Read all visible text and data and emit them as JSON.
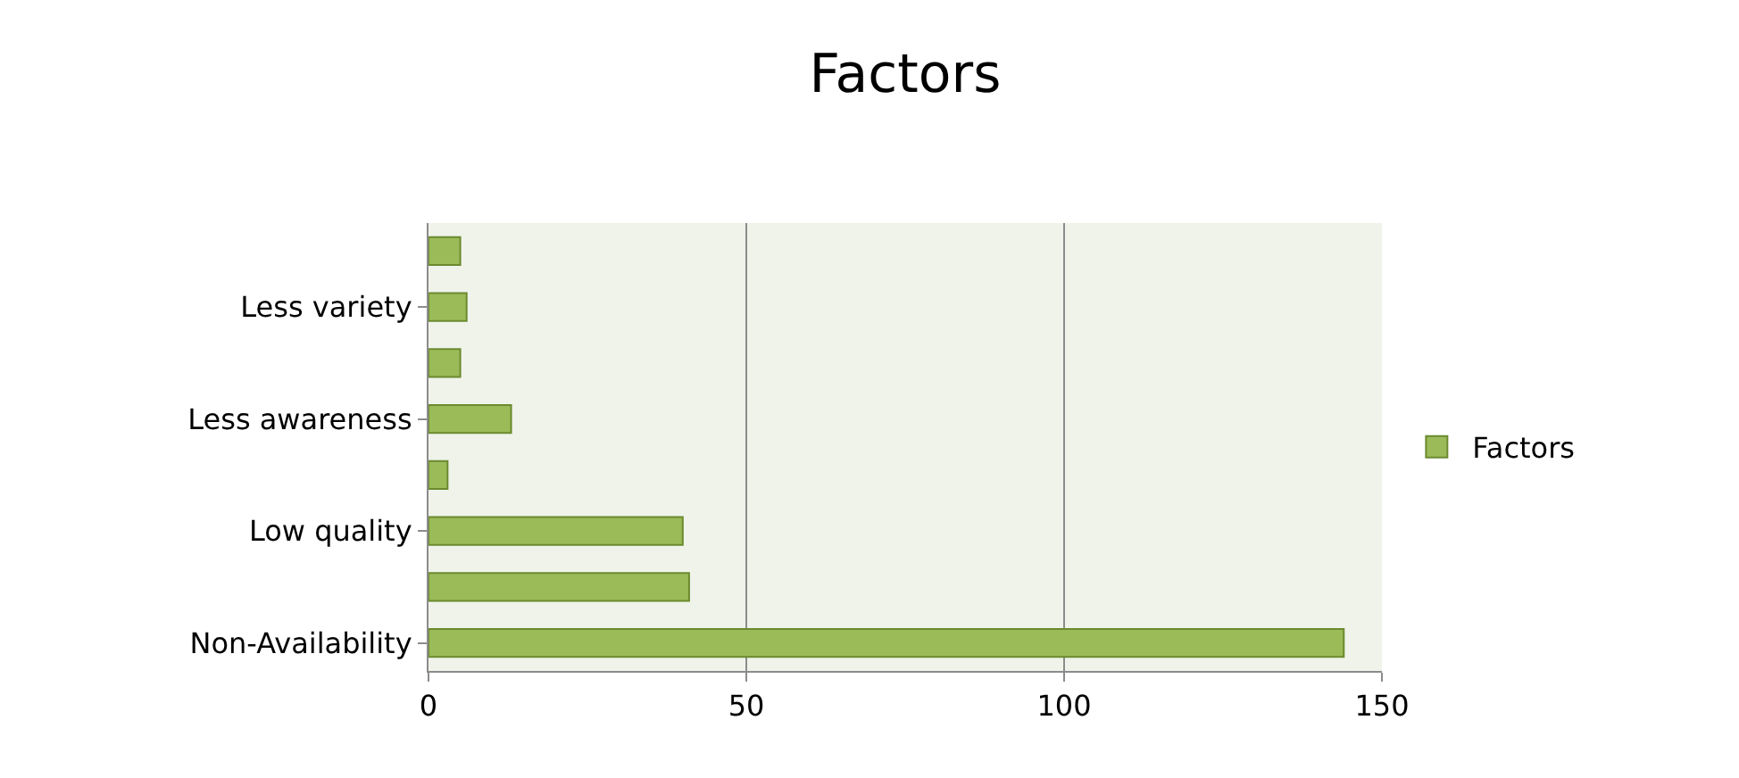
{
  "chart_data": {
    "type": "bar",
    "orientation": "horizontal",
    "title": "Factors",
    "categories": [
      null,
      "Less variety",
      null,
      "Less awareness",
      null,
      "Low quality",
      null,
      "Non-Availability"
    ],
    "series": [
      {
        "name": "Factors",
        "color": "#9bbb59",
        "values": [
          5,
          6,
          5,
          13,
          3,
          40,
          41,
          144
        ]
      }
    ],
    "xlim": [
      0,
      150
    ],
    "xticks": [
      0,
      50,
      100,
      150
    ],
    "grid": "x",
    "legend": "right"
  }
}
